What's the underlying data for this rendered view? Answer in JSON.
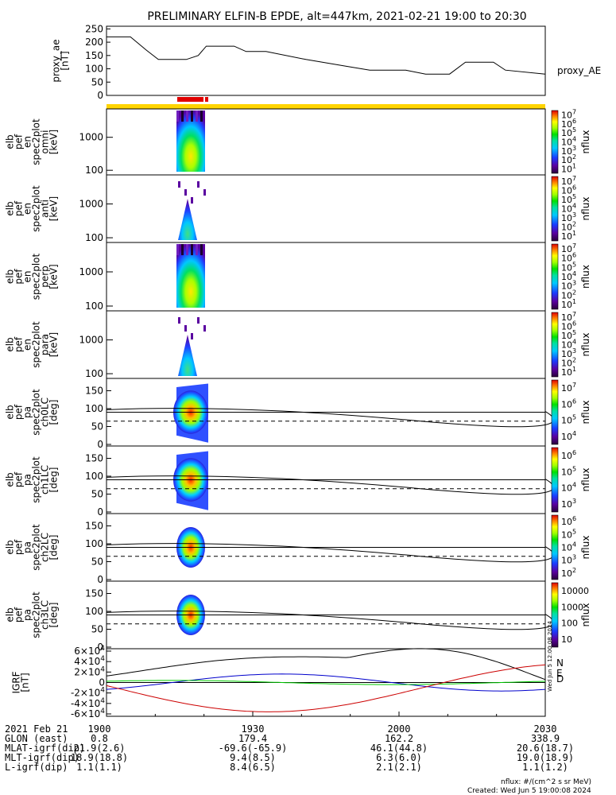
{
  "title": "PRELIMINARY ELFIN-B EPDE, alt=447km, 2021-02-21 19:00 to 20:30",
  "chart_data": {
    "type": "spectrogram-stack",
    "time_range": [
      "19:00",
      "20:30"
    ],
    "ae": {
      "ylabel": [
        "proxy_ae",
        "[nT]"
      ],
      "legend": "proxy_AE",
      "yticks": [
        "0",
        "50",
        "100",
        "150",
        "200",
        "250"
      ],
      "ylim": [
        0,
        260
      ],
      "points": [
        [
          0,
          220
        ],
        [
          6,
          220
        ],
        [
          10,
          170
        ],
        [
          13,
          135
        ],
        [
          20,
          135
        ],
        [
          23,
          150
        ],
        [
          25,
          185
        ],
        [
          32,
          185
        ],
        [
          35,
          165
        ],
        [
          40,
          165
        ],
        [
          50,
          135
        ],
        [
          60,
          110
        ],
        [
          66,
          95
        ],
        [
          75,
          95
        ],
        [
          80,
          80
        ],
        [
          86,
          80
        ],
        [
          90,
          125
        ],
        [
          97,
          125
        ],
        [
          100,
          95
        ],
        [
          110,
          80
        ]
      ]
    },
    "energy_panels": [
      {
        "label": [
          "elb",
          "pef",
          "en",
          "spec2plot",
          "omni",
          "[keV]"
        ],
        "yticks": [
          "100",
          "1000"
        ],
        "cbar": [
          "10",
          "10",
          "10",
          "10",
          "10",
          "10",
          "10"
        ],
        "cbar_exp": [
          "1",
          "2",
          "3",
          "4",
          "5",
          "6",
          "7"
        ],
        "cbar_label": "nflux",
        "mode": "full"
      },
      {
        "label": [
          "elb",
          "pef",
          "en",
          "spec2plot",
          "anti",
          "[keV]"
        ],
        "yticks": [
          "100",
          "1000"
        ],
        "cbar": [
          "10",
          "10",
          "10",
          "10",
          "10",
          "10",
          "10"
        ],
        "cbar_exp": [
          "1",
          "2",
          "3",
          "4",
          "5",
          "6",
          "7"
        ],
        "cbar_label": "nflux",
        "mode": "sparse"
      },
      {
        "label": [
          "elb",
          "pef",
          "en",
          "spec2plot",
          "perp",
          "[keV]"
        ],
        "yticks": [
          "100",
          "1000"
        ],
        "cbar": [
          "10",
          "10",
          "10",
          "10",
          "10",
          "10",
          "10"
        ],
        "cbar_exp": [
          "1",
          "2",
          "3",
          "4",
          "5",
          "6",
          "7"
        ],
        "cbar_label": "nflux",
        "mode": "full"
      },
      {
        "label": [
          "elb",
          "pef",
          "en",
          "spec2plot",
          "para",
          "[keV]"
        ],
        "yticks": [
          "100",
          "1000"
        ],
        "cbar": [
          "10",
          "10",
          "10",
          "10",
          "10",
          "10",
          "10"
        ],
        "cbar_exp": [
          "1",
          "2",
          "3",
          "4",
          "5",
          "6",
          "7"
        ],
        "cbar_label": "nflux",
        "mode": "sparse"
      }
    ],
    "pa_panels": [
      {
        "label": [
          "elb",
          "pef",
          "pa",
          "spec2plot",
          "ch0LC",
          "[deg]"
        ],
        "yticks": [
          "0",
          "50",
          "100",
          "150"
        ],
        "cbar": [
          "10",
          "10",
          "10",
          "10"
        ],
        "cbar_exp": [
          "4",
          "5",
          "6",
          "7"
        ],
        "cbar_label": "nflux"
      },
      {
        "label": [
          "elb",
          "pef",
          "pa",
          "spec2plot",
          "ch1LC",
          "[deg]"
        ],
        "yticks": [
          "0",
          "50",
          "100",
          "150"
        ],
        "cbar": [
          "10",
          "10",
          "10",
          "10"
        ],
        "cbar_exp": [
          "3",
          "4",
          "5",
          "6"
        ],
        "cbar_label": "nflux"
      },
      {
        "label": [
          "elb",
          "pef",
          "pa",
          "spec2plot",
          "ch2LC",
          "[deg]"
        ],
        "yticks": [
          "0",
          "50",
          "100",
          "150"
        ],
        "cbar": [
          "10",
          "10",
          "10",
          "10",
          "10"
        ],
        "cbar_exp": [
          "2",
          "3",
          "4",
          "5",
          "6"
        ],
        "cbar_label": "nflux"
      },
      {
        "label": [
          "elb",
          "pef",
          "pa",
          "spec2plot",
          "ch3LC",
          "[deg]"
        ],
        "yticks": [
          "0",
          "50",
          "100",
          "150"
        ],
        "cbar": [
          "10",
          "100",
          "1000",
          "10000"
        ],
        "cbar_exp": [
          "",
          "",
          "",
          ""
        ],
        "cbar_label": "nflux"
      }
    ],
    "igrf": {
      "ylabel": [
        "IGRF",
        "[nT]"
      ],
      "yticks": [
        {
          "m": "-6",
          "e": "4"
        },
        {
          "m": "-4",
          "e": "4"
        },
        {
          "m": "-2",
          "e": "4"
        },
        {
          "m": "0",
          "e": ""
        },
        {
          "m": "2",
          "e": "4"
        },
        {
          "m": "4",
          "e": "4"
        },
        {
          "m": "6",
          "e": "4"
        }
      ],
      "legend": [
        "N",
        "E",
        "D"
      ],
      "colors": {
        "N": "#0000cc",
        "E": "#00cc00",
        "D": "#cc0000",
        "total": "#000000"
      },
      "stamp": "Wed Jun  5 12:00:08 2024"
    },
    "xaxis": {
      "rows": [
        {
          "label": "2021 Feb 21",
          "values": [
            "1900",
            "1930",
            "2000",
            "2030"
          ]
        },
        {
          "label": "GLON (east)",
          "values": [
            "0.8",
            "179.4",
            "162.2",
            "338.9"
          ]
        },
        {
          "label": "MLAT-igrf(dip)",
          "values": [
            "21.9(2.6)",
            "-69.6(-65.9)",
            "46.1(44.8)",
            "20.6(18.7)"
          ]
        },
        {
          "label": "MLT-igrf(dip)",
          "values": [
            "18.9(18.8)",
            "9.4(8.5)",
            "6.3(6.0)",
            "19.0(18.9)"
          ]
        },
        {
          "label": "L-igrf(dip)",
          "values": [
            "1.1(1.1)",
            "8.4(6.5)",
            "2.1(2.1)",
            "1.1(1.2)"
          ]
        }
      ]
    },
    "colors": {
      "bar_yellow": "#ffd400",
      "bar_red": "#e00000"
    }
  },
  "footer": {
    "units": "nflux: #/(cm^2 s sr MeV)",
    "created": "Created: Wed Jun  5 19:00:08 2024"
  }
}
